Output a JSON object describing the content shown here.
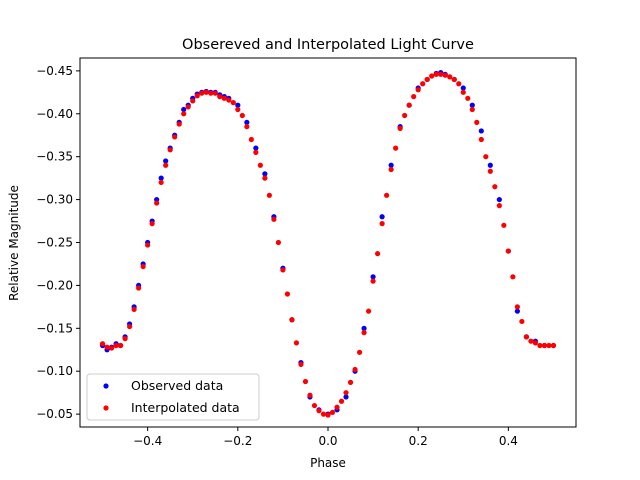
{
  "chart_data": {
    "type": "scatter",
    "title": "Obsereved and Interpolated Light Curve",
    "xlabel": "Phase",
    "ylabel": "Relative Magnitude",
    "xlim": [
      -0.55,
      0.55
    ],
    "ylim": [
      -0.035,
      -0.465
    ],
    "y_inverted": true,
    "grid": false,
    "legend_position": "lower-left",
    "x_ticks": [
      -0.4,
      -0.2,
      0.0,
      0.2,
      0.4
    ],
    "x_tick_labels": [
      "−0.4",
      "−0.2",
      "0.0",
      "0.2",
      "0.4"
    ],
    "y_ticks": [
      -0.05,
      -0.1,
      -0.15,
      -0.2,
      -0.25,
      -0.3,
      -0.35,
      -0.4,
      -0.45
    ],
    "y_tick_labels": [
      "−0.05",
      "−0.10",
      "−0.15",
      "−0.20",
      "−0.25",
      "−0.30",
      "−0.35",
      "−0.40",
      "−0.45"
    ],
    "series": [
      {
        "name": "Observed data",
        "color": "#0000ff",
        "x": [
          -0.5,
          -0.49,
          -0.48,
          -0.47,
          -0.46,
          -0.45,
          -0.44,
          -0.43,
          -0.42,
          -0.41,
          -0.4,
          -0.39,
          -0.38,
          -0.37,
          -0.36,
          -0.35,
          -0.34,
          -0.33,
          -0.32,
          -0.31,
          -0.3,
          -0.29,
          -0.28,
          -0.27,
          -0.26,
          -0.25,
          -0.24,
          -0.23,
          -0.22,
          -0.2,
          -0.18,
          -0.16,
          -0.14,
          -0.12,
          -0.1,
          -0.08,
          -0.06,
          -0.04,
          -0.02,
          0.0,
          0.02,
          0.04,
          0.06,
          0.08,
          0.1,
          0.12,
          0.14,
          0.16,
          0.18,
          0.2,
          0.22,
          0.24,
          0.25,
          0.26,
          0.28,
          0.3,
          0.32,
          0.34,
          0.36,
          0.38,
          0.4,
          0.42,
          0.44,
          0.46,
          0.48,
          0.5
        ],
        "y": [
          -0.13,
          -0.125,
          -0.128,
          -0.132,
          -0.13,
          -0.14,
          -0.155,
          -0.175,
          -0.2,
          -0.225,
          -0.25,
          -0.275,
          -0.3,
          -0.325,
          -0.345,
          -0.36,
          -0.375,
          -0.39,
          -0.405,
          -0.41,
          -0.418,
          -0.423,
          -0.425,
          -0.426,
          -0.425,
          -0.425,
          -0.422,
          -0.42,
          -0.418,
          -0.41,
          -0.39,
          -0.36,
          -0.33,
          -0.28,
          -0.22,
          -0.16,
          -0.11,
          -0.07,
          -0.055,
          -0.05,
          -0.055,
          -0.07,
          -0.1,
          -0.15,
          -0.21,
          -0.28,
          -0.34,
          -0.385,
          -0.41,
          -0.43,
          -0.44,
          -0.447,
          -0.448,
          -0.446,
          -0.44,
          -0.43,
          -0.41,
          -0.38,
          -0.34,
          -0.3,
          -0.24,
          -0.17,
          -0.14,
          -0.135,
          -0.13,
          -0.13
        ]
      },
      {
        "name": "Interpolated data",
        "color": "#ff0000",
        "x": [
          -0.5,
          -0.49,
          -0.48,
          -0.47,
          -0.46,
          -0.45,
          -0.44,
          -0.43,
          -0.42,
          -0.41,
          -0.4,
          -0.39,
          -0.38,
          -0.37,
          -0.36,
          -0.35,
          -0.34,
          -0.33,
          -0.32,
          -0.31,
          -0.3,
          -0.29,
          -0.28,
          -0.27,
          -0.26,
          -0.25,
          -0.24,
          -0.23,
          -0.22,
          -0.21,
          -0.2,
          -0.19,
          -0.18,
          -0.17,
          -0.16,
          -0.15,
          -0.14,
          -0.13,
          -0.12,
          -0.11,
          -0.1,
          -0.09,
          -0.08,
          -0.07,
          -0.06,
          -0.05,
          -0.04,
          -0.03,
          -0.02,
          -0.01,
          0.0,
          0.01,
          0.02,
          0.03,
          0.04,
          0.05,
          0.06,
          0.07,
          0.08,
          0.09,
          0.1,
          0.11,
          0.12,
          0.13,
          0.14,
          0.15,
          0.16,
          0.17,
          0.18,
          0.19,
          0.2,
          0.21,
          0.22,
          0.23,
          0.24,
          0.25,
          0.26,
          0.27,
          0.28,
          0.29,
          0.3,
          0.31,
          0.32,
          0.33,
          0.34,
          0.35,
          0.36,
          0.37,
          0.38,
          0.39,
          0.4,
          0.41,
          0.42,
          0.43,
          0.44,
          0.45,
          0.46,
          0.47,
          0.48,
          0.49,
          0.5
        ],
        "y": [
          -0.132,
          -0.128,
          -0.127,
          -0.13,
          -0.13,
          -0.138,
          -0.152,
          -0.172,
          -0.197,
          -0.222,
          -0.247,
          -0.272,
          -0.296,
          -0.32,
          -0.34,
          -0.358,
          -0.373,
          -0.388,
          -0.4,
          -0.408,
          -0.415,
          -0.421,
          -0.424,
          -0.425,
          -0.424,
          -0.424,
          -0.42,
          -0.418,
          -0.416,
          -0.413,
          -0.405,
          -0.398,
          -0.385,
          -0.37,
          -0.355,
          -0.34,
          -0.325,
          -0.305,
          -0.277,
          -0.25,
          -0.218,
          -0.19,
          -0.16,
          -0.133,
          -0.108,
          -0.088,
          -0.072,
          -0.06,
          -0.054,
          -0.05,
          -0.049,
          -0.052,
          -0.058,
          -0.065,
          -0.075,
          -0.087,
          -0.102,
          -0.122,
          -0.145,
          -0.17,
          -0.205,
          -0.237,
          -0.272,
          -0.305,
          -0.335,
          -0.36,
          -0.383,
          -0.398,
          -0.41,
          -0.42,
          -0.428,
          -0.435,
          -0.44,
          -0.444,
          -0.446,
          -0.446,
          -0.445,
          -0.443,
          -0.44,
          -0.435,
          -0.425,
          -0.418,
          -0.405,
          -0.39,
          -0.37,
          -0.35,
          -0.333,
          -0.315,
          -0.293,
          -0.27,
          -0.24,
          -0.21,
          -0.175,
          -0.158,
          -0.14,
          -0.135,
          -0.133,
          -0.13,
          -0.13,
          -0.13,
          -0.13
        ]
      }
    ]
  }
}
